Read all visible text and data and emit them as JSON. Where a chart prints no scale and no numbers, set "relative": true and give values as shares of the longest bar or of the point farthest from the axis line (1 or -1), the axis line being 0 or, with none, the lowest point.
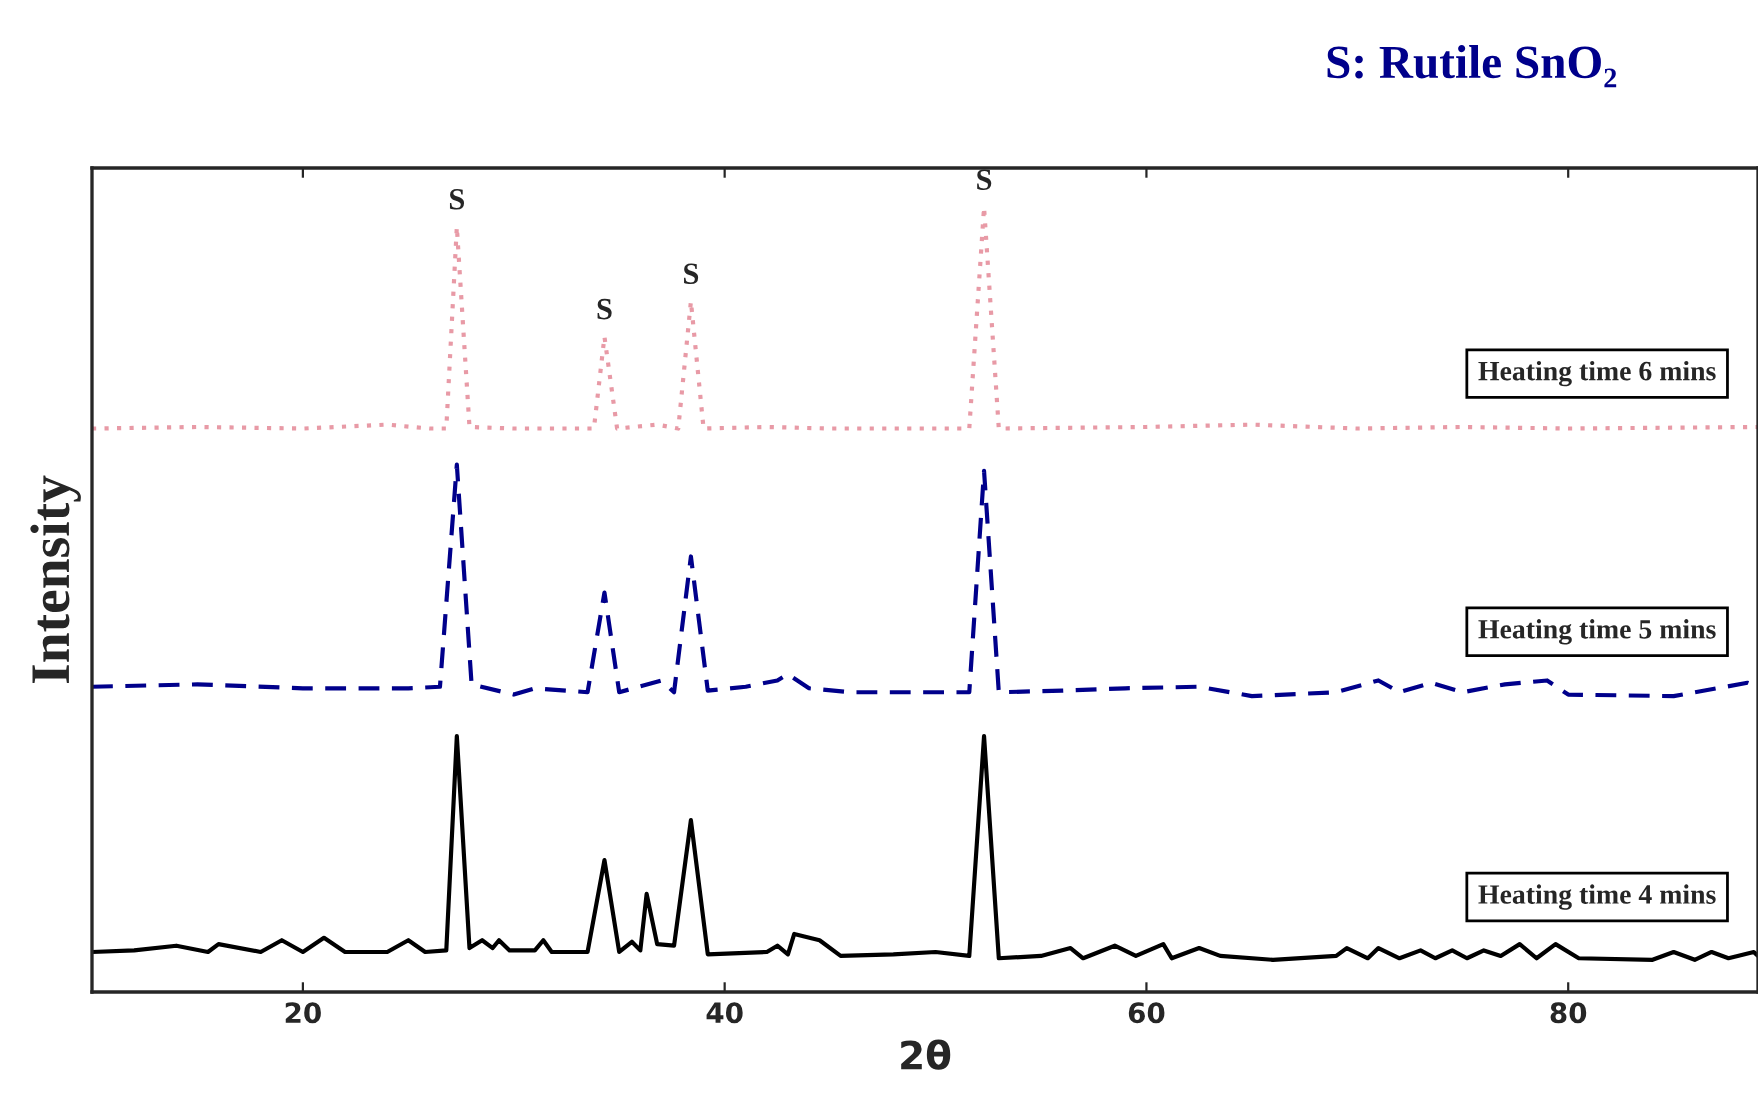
{
  "chart_data": {
    "type": "line",
    "title": "S: Rutile SnO₂",
    "xlabel": "2θ",
    "ylabel": "Intensity",
    "relative": true,
    "xlim": [
      10,
      89
    ],
    "xticks": [
      20,
      40,
      60,
      80
    ],
    "tick_labels": "x",
    "grid": false,
    "legend": false,
    "series": [
      {
        "name": "Heating time 6 mins",
        "color": "#e89aa6",
        "line_style": "dotted",
        "x": [
          10,
          15,
          20,
          24,
          26,
          26.8,
          27.3,
          27.9,
          30,
          33,
          33.8,
          34.3,
          34.9,
          36.8,
          37.8,
          38.4,
          39,
          42,
          45,
          51.6,
          52.3,
          53,
          60,
          65,
          70,
          75,
          80,
          89
        ],
        "values": [
          0.718,
          0.72,
          0.718,
          0.723,
          0.718,
          0.718,
          0.975,
          0.72,
          0.718,
          0.718,
          0.718,
          0.835,
          0.718,
          0.723,
          0.718,
          0.88,
          0.718,
          0.72,
          0.718,
          0.718,
          1.0,
          0.718,
          0.72,
          0.723,
          0.718,
          0.72,
          0.718,
          0.72
        ]
      },
      {
        "name": "Heating time 5 mins",
        "color": "#00008b",
        "line_style": "dashed",
        "x": [
          10,
          15,
          20,
          25,
          26.5,
          27.3,
          28,
          30,
          31,
          33.5,
          34.3,
          35,
          37,
          37.6,
          38.4,
          39.2,
          41,
          42.5,
          43,
          44,
          46,
          50,
          51.6,
          52.3,
          53,
          56,
          59,
          62.5,
          65,
          69,
          71,
          72,
          73.5,
          75,
          77,
          79,
          80,
          85,
          88.5,
          89
        ],
        "values": [
          0.389,
          0.392,
          0.387,
          0.387,
          0.389,
          0.672,
          0.392,
          0.379,
          0.387,
          0.382,
          0.509,
          0.382,
          0.397,
          0.382,
          0.555,
          0.384,
          0.389,
          0.397,
          0.405,
          0.387,
          0.382,
          0.382,
          0.382,
          0.664,
          0.382,
          0.384,
          0.387,
          0.389,
          0.377,
          0.382,
          0.397,
          0.382,
          0.394,
          0.382,
          0.392,
          0.397,
          0.379,
          0.377,
          0.394,
          0.389
        ]
      },
      {
        "name": "Heating time 4 mins",
        "color": "#000000",
        "line_style": "solid",
        "x": [
          10,
          12,
          14,
          15.5,
          16,
          18,
          19,
          20,
          21,
          22,
          24,
          25,
          25.8,
          26.8,
          27.3,
          27.9,
          28.5,
          29,
          29.3,
          29.8,
          31,
          31.4,
          31.8,
          33.5,
          34.3,
          35,
          35.6,
          36,
          36.3,
          36.8,
          37.6,
          38.4,
          39.2,
          42,
          42.5,
          43,
          43.3,
          44.5,
          45.5,
          48,
          50,
          51.6,
          52.3,
          53,
          55,
          56.4,
          57,
          58.5,
          59.5,
          60.8,
          61.2,
          62.5,
          63.5,
          66,
          69,
          69.5,
          70.5,
          71,
          72,
          73,
          73.7,
          74.5,
          75.2,
          76,
          76.8,
          77.7,
          78.5,
          79.4,
          80.5,
          84,
          85,
          86,
          86.8,
          87.6,
          88.8,
          89
        ],
        "values": [
          0.051,
          0.053,
          0.059,
          0.051,
          0.061,
          0.051,
          0.066,
          0.051,
          0.069,
          0.051,
          0.051,
          0.066,
          0.051,
          0.053,
          0.326,
          0.056,
          0.066,
          0.056,
          0.066,
          0.053,
          0.053,
          0.066,
          0.051,
          0.051,
          0.168,
          0.051,
          0.064,
          0.053,
          0.125,
          0.061,
          0.059,
          0.219,
          0.048,
          0.051,
          0.059,
          0.048,
          0.074,
          0.066,
          0.046,
          0.048,
          0.051,
          0.046,
          0.326,
          0.043,
          0.046,
          0.056,
          0.043,
          0.059,
          0.046,
          0.061,
          0.043,
          0.056,
          0.046,
          0.041,
          0.046,
          0.056,
          0.043,
          0.056,
          0.043,
          0.053,
          0.043,
          0.053,
          0.043,
          0.053,
          0.046,
          0.061,
          0.043,
          0.061,
          0.043,
          0.041,
          0.051,
          0.041,
          0.051,
          0.043,
          0.051,
          0.046
        ]
      }
    ],
    "annotations": [
      {
        "text": "S",
        "x": 27.3,
        "y": 0.975
      },
      {
        "text": "S",
        "x": 34.3,
        "y": 0.835
      },
      {
        "text": "S",
        "x": 38.4,
        "y": 0.88
      },
      {
        "text": "S",
        "x": 52.3,
        "y": 1.0
      }
    ]
  }
}
